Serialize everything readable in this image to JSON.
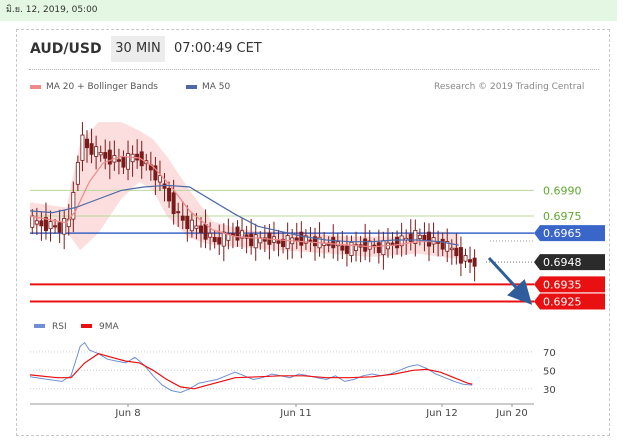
{
  "date_text": "มิ.ย. 12, 2019, 05:00",
  "header": {
    "symbol": "AUD/USD",
    "timeframe": "30 MIN",
    "time": "07:00:49 CET"
  },
  "legend": {
    "ma20": "MA 20 + Bollinger Bands",
    "ma50": "MA 50",
    "credit": "Research © 2019 Trading Central"
  },
  "colors": {
    "green_level": "#5fa830",
    "blue_level": "#3a66c9",
    "red_level": "#e81010",
    "ma20": "#ee8a8a",
    "ma50": "#4d6aa8",
    "band": "#fbd3d3",
    "candle": "#7a1b1b",
    "arrow": "#2f5d9c",
    "current_tag": "#2b2b2b",
    "rsi": "#6f90d6",
    "rsi_ma": "#e81010"
  },
  "chart_data": {
    "type": "candlestick",
    "symbol": "AUD/USD",
    "interval": "30 MIN",
    "price_range": [
      0.692,
      0.704
    ],
    "levels": [
      {
        "value": 0.699,
        "label": "0.6990",
        "kind": "target"
      },
      {
        "value": 0.6975,
        "label": "0.6975",
        "kind": "target"
      },
      {
        "value": 0.6965,
        "label": "0.6965",
        "kind": "pivot"
      },
      {
        "value": 0.6948,
        "label": "0.6948",
        "kind": "current"
      },
      {
        "value": 0.6935,
        "label": "0.6935",
        "kind": "support"
      },
      {
        "value": 0.6925,
        "label": "0.6925",
        "kind": "support"
      }
    ],
    "x_labels": [
      "Jun 8",
      "Jun 11",
      "Jun 12",
      "Jun 20"
    ],
    "close_path": [
      [
        0,
        0.6972
      ],
      [
        4,
        0.697
      ],
      [
        7,
        0.6968
      ],
      [
        9,
        0.6972
      ],
      [
        10,
        0.699
      ],
      [
        11,
        0.701
      ],
      [
        12,
        0.702
      ],
      [
        13,
        0.7015
      ],
      [
        15,
        0.7012
      ],
      [
        17,
        0.701
      ],
      [
        19,
        0.7008
      ],
      [
        21,
        0.7006
      ],
      [
        23,
        0.701
      ],
      [
        25,
        0.7008
      ],
      [
        27,
        0.7002
      ],
      [
        29,
        0.6995
      ],
      [
        31,
        0.6985
      ],
      [
        33,
        0.6975
      ],
      [
        35,
        0.697
      ],
      [
        37,
        0.6968
      ],
      [
        39,
        0.6965
      ],
      [
        41,
        0.696
      ],
      [
        43,
        0.6962
      ],
      [
        45,
        0.6965
      ],
      [
        47,
        0.6964
      ],
      [
        49,
        0.696
      ],
      [
        51,
        0.6961
      ],
      [
        53,
        0.6962
      ],
      [
        55,
        0.6959
      ],
      [
        57,
        0.696
      ],
      [
        59,
        0.6962
      ],
      [
        61,
        0.6961
      ],
      [
        63,
        0.696
      ],
      [
        65,
        0.6958
      ],
      [
        67,
        0.696
      ],
      [
        69,
        0.6955
      ],
      [
        71,
        0.6956
      ],
      [
        73,
        0.6958
      ],
      [
        75,
        0.6958
      ],
      [
        77,
        0.6956
      ],
      [
        79,
        0.6958
      ],
      [
        81,
        0.696
      ],
      [
        83,
        0.6962
      ],
      [
        85,
        0.6963
      ],
      [
        87,
        0.6962
      ],
      [
        89,
        0.696
      ],
      [
        91,
        0.6958
      ],
      [
        93,
        0.6955
      ],
      [
        95,
        0.6951
      ],
      [
        97,
        0.6948
      ]
    ],
    "ma20": [
      [
        0,
        0.6975
      ],
      [
        8,
        0.6971
      ],
      [
        10,
        0.6978
      ],
      [
        13,
        0.6995
      ],
      [
        16,
        0.7006
      ],
      [
        20,
        0.701
      ],
      [
        24,
        0.7009
      ],
      [
        27,
        0.7004
      ],
      [
        31,
        0.6992
      ],
      [
        35,
        0.6978
      ],
      [
        40,
        0.6967
      ],
      [
        45,
        0.6963
      ],
      [
        50,
        0.6962
      ],
      [
        55,
        0.6961
      ],
      [
        60,
        0.696
      ],
      [
        65,
        0.6959
      ],
      [
        70,
        0.6958
      ],
      [
        75,
        0.6957
      ],
      [
        80,
        0.6958
      ],
      [
        85,
        0.696
      ],
      [
        90,
        0.696
      ],
      [
        94,
        0.6958
      ]
    ],
    "ma50": [
      [
        0,
        0.6978
      ],
      [
        5,
        0.6977
      ],
      [
        10,
        0.698
      ],
      [
        15,
        0.6985
      ],
      [
        20,
        0.699
      ],
      [
        25,
        0.6992
      ],
      [
        30,
        0.6993
      ],
      [
        35,
        0.6992
      ],
      [
        40,
        0.6984
      ],
      [
        45,
        0.6976
      ],
      [
        50,
        0.6969
      ],
      [
        55,
        0.6966
      ],
      [
        60,
        0.6963
      ],
      [
        65,
        0.6961
      ],
      [
        70,
        0.696
      ],
      [
        75,
        0.696
      ],
      [
        80,
        0.6961
      ],
      [
        85,
        0.6961
      ],
      [
        90,
        0.696
      ],
      [
        94,
        0.6958
      ]
    ],
    "bollinger_upper": [
      [
        0,
        0.6983
      ],
      [
        8,
        0.698
      ],
      [
        11,
        0.7018
      ],
      [
        15,
        0.703
      ],
      [
        20,
        0.703
      ],
      [
        24,
        0.7025
      ],
      [
        27,
        0.702
      ],
      [
        30,
        0.701
      ],
      [
        35,
        0.699
      ],
      [
        40,
        0.6972
      ],
      [
        45,
        0.6968
      ],
      [
        50,
        0.6966
      ],
      [
        55,
        0.6966
      ],
      [
        60,
        0.6965
      ],
      [
        65,
        0.6964
      ],
      [
        70,
        0.6963
      ],
      [
        75,
        0.6963
      ],
      [
        80,
        0.6963
      ],
      [
        85,
        0.6965
      ],
      [
        90,
        0.6966
      ],
      [
        94,
        0.6965
      ]
    ],
    "bollinger_lower": [
      [
        0,
        0.697
      ],
      [
        8,
        0.6966
      ],
      [
        11,
        0.6955
      ],
      [
        15,
        0.6965
      ],
      [
        20,
        0.6985
      ],
      [
        24,
        0.6995
      ],
      [
        27,
        0.699
      ],
      [
        30,
        0.6975
      ],
      [
        35,
        0.6962
      ],
      [
        40,
        0.6958
      ],
      [
        45,
        0.6957
      ],
      [
        50,
        0.6956
      ],
      [
        55,
        0.6955
      ],
      [
        60,
        0.6954
      ],
      [
        65,
        0.6953
      ],
      [
        70,
        0.6952
      ],
      [
        75,
        0.6951
      ],
      [
        80,
        0.6952
      ],
      [
        85,
        0.6953
      ],
      [
        90,
        0.6951
      ],
      [
        94,
        0.695
      ]
    ],
    "rsi": {
      "legend": [
        "RSI",
        "9MA"
      ],
      "range": [
        20,
        85
      ],
      "ticks": [
        70,
        50,
        30
      ],
      "rsi_path": [
        [
          0,
          43
        ],
        [
          4,
          40
        ],
        [
          7,
          38
        ],
        [
          9,
          44
        ],
        [
          10,
          60
        ],
        [
          11,
          76
        ],
        [
          12,
          80
        ],
        [
          13,
          72
        ],
        [
          15,
          68
        ],
        [
          17,
          62
        ],
        [
          19,
          60
        ],
        [
          21,
          58
        ],
        [
          23,
          64
        ],
        [
          25,
          56
        ],
        [
          27,
          44
        ],
        [
          29,
          34
        ],
        [
          31,
          28
        ],
        [
          33,
          26
        ],
        [
          35,
          30
        ],
        [
          37,
          36
        ],
        [
          39,
          38
        ],
        [
          41,
          40
        ],
        [
          43,
          44
        ],
        [
          45,
          48
        ],
        [
          47,
          44
        ],
        [
          49,
          40
        ],
        [
          51,
          42
        ],
        [
          53,
          46
        ],
        [
          55,
          44
        ],
        [
          57,
          42
        ],
        [
          59,
          46
        ],
        [
          61,
          44
        ],
        [
          63,
          42
        ],
        [
          65,
          40
        ],
        [
          67,
          44
        ],
        [
          69,
          38
        ],
        [
          71,
          40
        ],
        [
          73,
          44
        ],
        [
          75,
          46
        ],
        [
          77,
          44
        ],
        [
          79,
          46
        ],
        [
          81,
          50
        ],
        [
          83,
          54
        ],
        [
          85,
          56
        ],
        [
          87,
          52
        ],
        [
          89,
          46
        ],
        [
          91,
          42
        ],
        [
          93,
          38
        ],
        [
          95,
          35
        ],
        [
          97,
          34
        ]
      ],
      "ma_path": [
        [
          0,
          45
        ],
        [
          6,
          42
        ],
        [
          9,
          42
        ],
        [
          12,
          58
        ],
        [
          15,
          68
        ],
        [
          18,
          64
        ],
        [
          21,
          60
        ],
        [
          24,
          58
        ],
        [
          27,
          50
        ],
        [
          30,
          40
        ],
        [
          33,
          32
        ],
        [
          36,
          30
        ],
        [
          39,
          34
        ],
        [
          42,
          38
        ],
        [
          45,
          42
        ],
        [
          50,
          43
        ],
        [
          55,
          44
        ],
        [
          60,
          44
        ],
        [
          65,
          42
        ],
        [
          70,
          42
        ],
        [
          75,
          43
        ],
        [
          80,
          46
        ],
        [
          84,
          50
        ],
        [
          87,
          51
        ],
        [
          90,
          48
        ],
        [
          93,
          42
        ],
        [
          96,
          36
        ],
        [
          97,
          35
        ]
      ]
    }
  }
}
